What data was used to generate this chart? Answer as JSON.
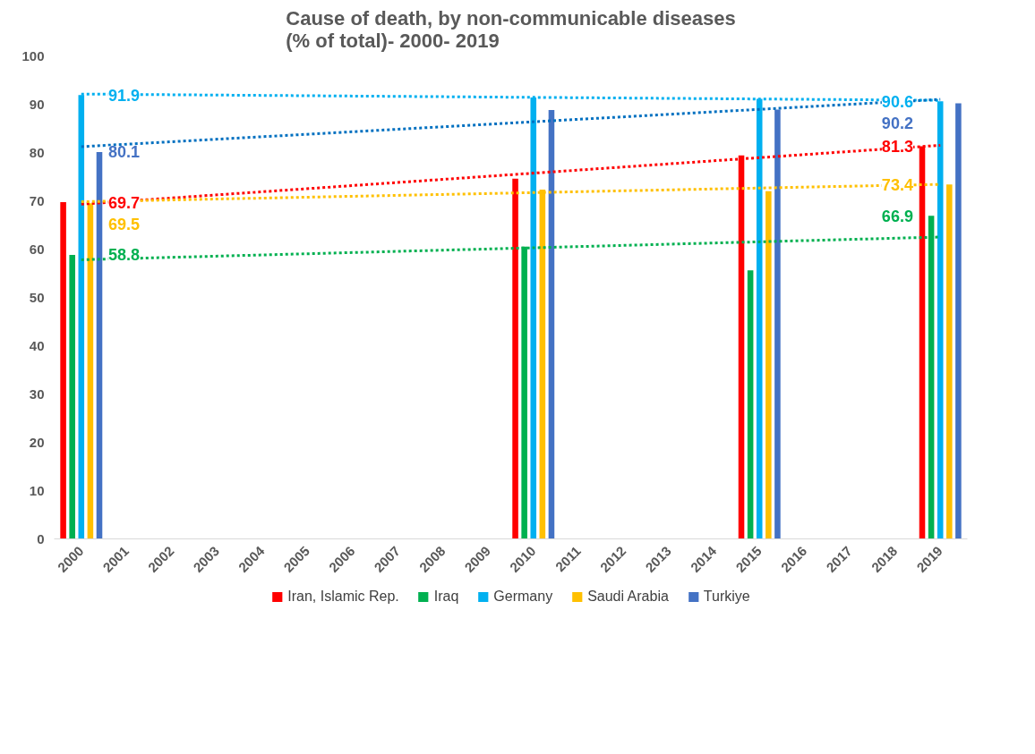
{
  "chart_data": {
    "type": "bar",
    "title": "Cause of death, by non-communicable diseases\n(% of total)- 2000- 2019",
    "categories": [
      "2000",
      "2001",
      "2002",
      "2003",
      "2004",
      "2005",
      "2006",
      "2007",
      "2008",
      "2009",
      "2010",
      "2011",
      "2012",
      "2013",
      "2014",
      "2015",
      "2016",
      "2017",
      "2018",
      "2019"
    ],
    "ylim": [
      0,
      100
    ],
    "yticks": [
      0,
      10,
      20,
      30,
      40,
      50,
      60,
      70,
      80,
      90,
      100
    ],
    "grid": false,
    "legend": "bottom",
    "series": [
      {
        "name": "Iran, Islamic Rep.",
        "color": "#ff0000",
        "values": [
          69.7,
          null,
          null,
          null,
          null,
          null,
          null,
          null,
          null,
          null,
          74.6,
          null,
          null,
          null,
          null,
          79.4,
          null,
          null,
          null,
          81.3
        ]
      },
      {
        "name": "Iraq",
        "color": "#00b050",
        "values": [
          58.8,
          null,
          null,
          null,
          null,
          null,
          null,
          null,
          null,
          null,
          60.5,
          null,
          null,
          null,
          null,
          55.6,
          null,
          null,
          null,
          66.9
        ]
      },
      {
        "name": "Germany",
        "color": "#00b0f0",
        "values": [
          91.9,
          null,
          null,
          null,
          null,
          null,
          null,
          null,
          null,
          null,
          91.4,
          null,
          null,
          null,
          null,
          91.1,
          null,
          null,
          null,
          90.6
        ]
      },
      {
        "name": "Saudi Arabia",
        "color": "#ffc000",
        "values": [
          69.5,
          null,
          null,
          null,
          null,
          null,
          null,
          null,
          null,
          null,
          72.3,
          null,
          null,
          null,
          null,
          72.0,
          null,
          null,
          null,
          73.4
        ]
      },
      {
        "name": "Turkiye",
        "color": "#4472c4",
        "values": [
          80.1,
          null,
          null,
          null,
          null,
          null,
          null,
          null,
          null,
          null,
          88.8,
          null,
          null,
          null,
          null,
          88.9,
          null,
          null,
          null,
          90.2
        ]
      },
      {
        "type": "line",
        "line_style": "dotted",
        "color": "#ff0000",
        "values": [
          69.3,
          null,
          null,
          null,
          null,
          null,
          null,
          null,
          null,
          null,
          null,
          null,
          null,
          null,
          null,
          null,
          null,
          null,
          null,
          81.5
        ]
      },
      {
        "type": "line",
        "line_style": "dotted",
        "color": "#00b050",
        "values": [
          57.8,
          null,
          null,
          null,
          null,
          null,
          null,
          null,
          null,
          null,
          null,
          null,
          null,
          null,
          null,
          null,
          null,
          null,
          null,
          62.5
        ]
      },
      {
        "type": "line",
        "line_style": "dotted",
        "color": "#00b0f0",
        "values": [
          92.1,
          null,
          null,
          null,
          null,
          null,
          null,
          null,
          null,
          null,
          null,
          null,
          null,
          null,
          null,
          null,
          null,
          null,
          null,
          90.8
        ]
      },
      {
        "type": "line",
        "line_style": "dotted",
        "color": "#ffc000",
        "values": [
          69.8,
          null,
          null,
          null,
          null,
          null,
          null,
          null,
          null,
          null,
          null,
          null,
          null,
          null,
          null,
          null,
          null,
          null,
          null,
          73.4
        ]
      },
      {
        "type": "line",
        "line_style": "dotted",
        "color": "#0070c0",
        "values": [
          81.2,
          null,
          null,
          null,
          null,
          null,
          null,
          null,
          null,
          null,
          null,
          null,
          null,
          null,
          null,
          null,
          null,
          null,
          null,
          91.0
        ]
      }
    ],
    "annotations": [
      {
        "text": "91.9",
        "x": "2000",
        "y": 91.9
      },
      {
        "text": "80.1",
        "x": "2000",
        "y": 80.1
      },
      {
        "text": "69.7",
        "x": "2000",
        "y": 69.7
      },
      {
        "text": "69.5",
        "x": "2000",
        "y": 69.5
      },
      {
        "text": "58.8",
        "x": "2000",
        "y": 58.8
      },
      {
        "text": "90.6",
        "x": "2019",
        "y": 90.6
      },
      {
        "text": "90.2",
        "x": "2019",
        "y": 90.2
      },
      {
        "text": "81.3",
        "x": "2019",
        "y": 81.3
      },
      {
        "text": "73.4",
        "x": "2019",
        "y": 73.4
      },
      {
        "text": "66.9",
        "x": "2019",
        "y": 66.9
      }
    ]
  }
}
